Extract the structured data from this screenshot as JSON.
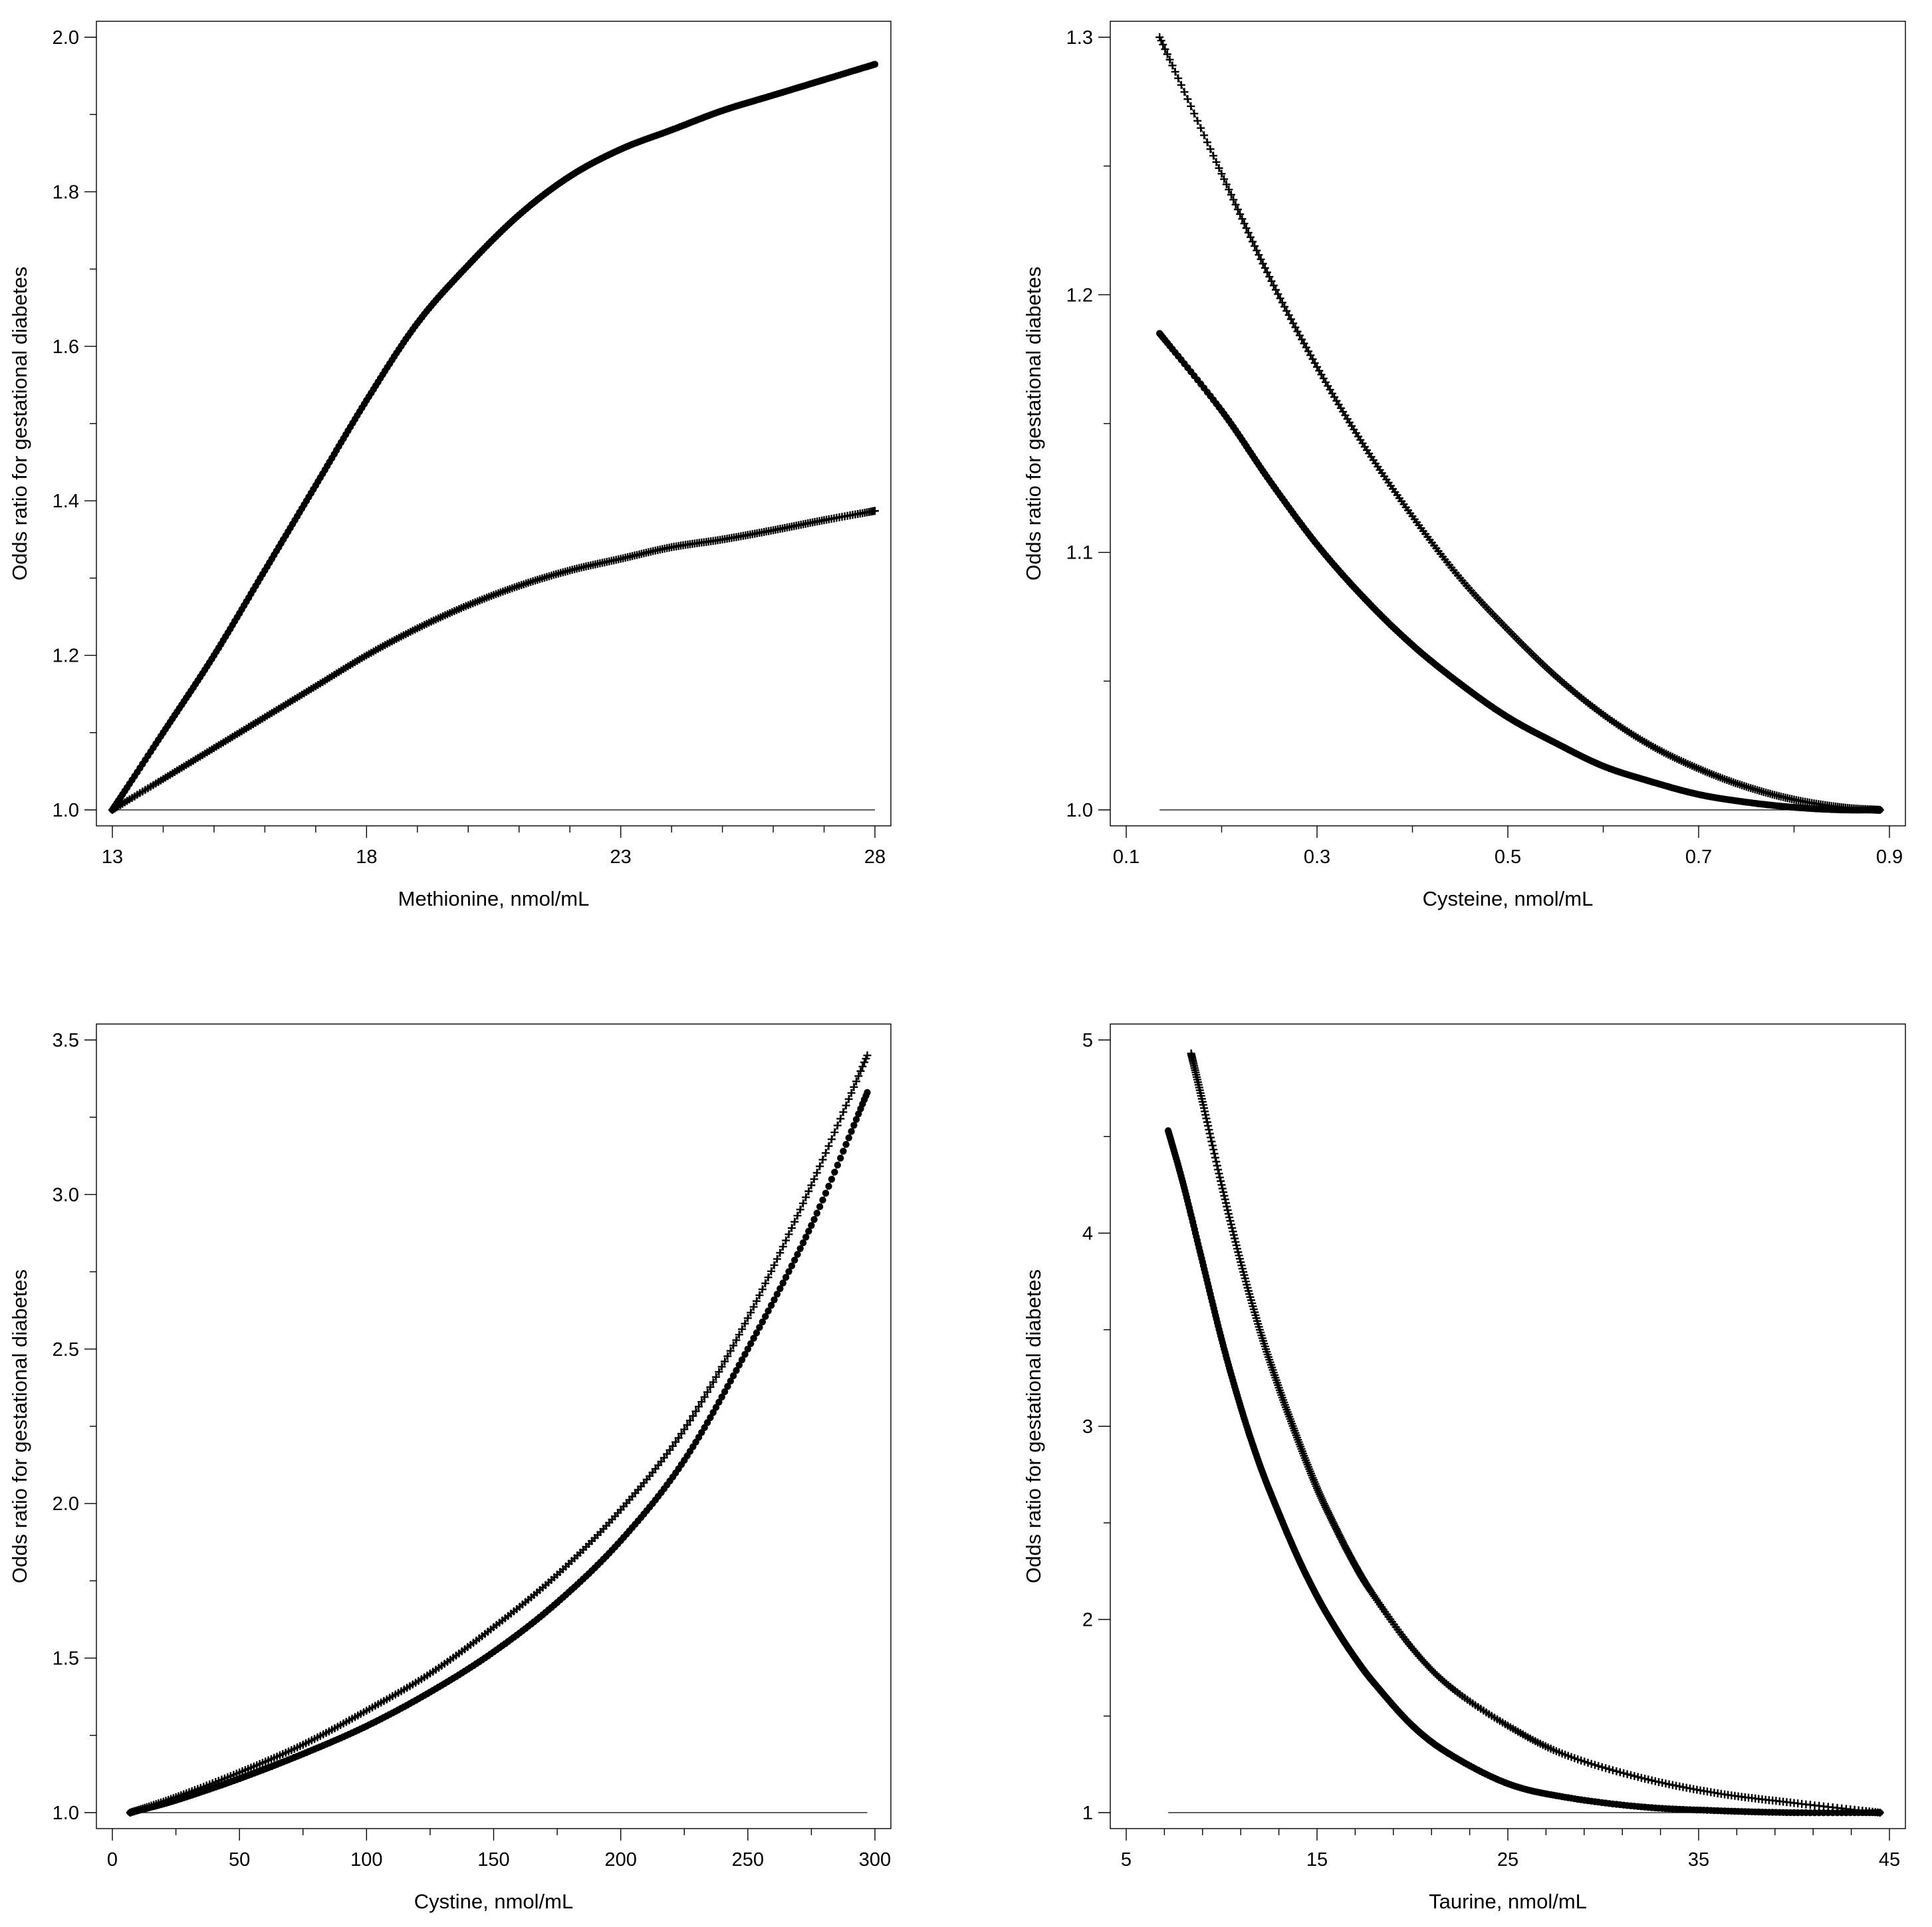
{
  "chart_data": [
    {
      "type": "line",
      "xlabel": "Methionine, nmol/mL",
      "ylabel": "Odds ratio for gestational diabetes",
      "xlim": [
        13,
        28
      ],
      "ylim": [
        1.0,
        2.0
      ],
      "x_ticks": [
        "13",
        "18",
        "23",
        "28"
      ],
      "y_ticks": [
        "1.0",
        "1.2",
        "1.4",
        "1.6",
        "1.8",
        "2.0"
      ],
      "x_minor_step": 1,
      "y_minor_step": 0.1,
      "reference_line": 1.0,
      "series": [
        {
          "name": "dots",
          "marker": "dot",
          "x": [
            13.0,
            14.0,
            15.0,
            16.0,
            17.0,
            18.0,
            19.0,
            20.0,
            21.0,
            22.0,
            23.0,
            24.0,
            25.0,
            26.0,
            27.0,
            28.0
          ],
          "values": [
            1.0,
            1.1,
            1.2,
            1.31,
            1.42,
            1.53,
            1.63,
            1.705,
            1.77,
            1.82,
            1.855,
            1.88,
            1.905,
            1.925,
            1.945,
            1.965
          ]
        },
        {
          "name": "plus",
          "marker": "plus",
          "x": [
            13.0,
            14.0,
            15.0,
            16.0,
            17.0,
            18.0,
            19.0,
            20.0,
            21.0,
            22.0,
            23.0,
            24.0,
            25.0,
            26.0,
            27.0,
            28.0
          ],
          "values": [
            1.0,
            1.04,
            1.08,
            1.12,
            1.16,
            1.2,
            1.235,
            1.265,
            1.29,
            1.31,
            1.325,
            1.34,
            1.35,
            1.362,
            1.375,
            1.387
          ]
        }
      ]
    },
    {
      "type": "line",
      "xlabel": "Cysteine, nmol/mL",
      "ylabel": "Odds ratio for gestational diabetes",
      "xlim": [
        0.1,
        0.9
      ],
      "ylim": [
        1.0,
        1.3
      ],
      "x_ticks": [
        "0.1",
        "0.3",
        "0.5",
        "0.7",
        "0.9"
      ],
      "y_ticks": [
        "1.0",
        "1.1",
        "1.2",
        "1.3"
      ],
      "x_minor_step": 0.1,
      "y_minor_step": 0.05,
      "reference_line": 1.0,
      "series": [
        {
          "name": "dots",
          "marker": "dot",
          "x": [
            0.135,
            0.2,
            0.25,
            0.3,
            0.35,
            0.4,
            0.45,
            0.5,
            0.55,
            0.6,
            0.65,
            0.7,
            0.75,
            0.8,
            0.85,
            0.89
          ],
          "values": [
            1.185,
            1.155,
            1.128,
            1.103,
            1.082,
            1.064,
            1.049,
            1.036,
            1.026,
            1.017,
            1.011,
            1.006,
            1.003,
            1.001,
            1.0,
            1.0
          ]
        },
        {
          "name": "plus",
          "marker": "plus",
          "x": [
            0.135,
            0.2,
            0.25,
            0.3,
            0.35,
            0.4,
            0.45,
            0.5,
            0.55,
            0.6,
            0.65,
            0.7,
            0.75,
            0.8,
            0.85,
            0.89
          ],
          "values": [
            1.3,
            1.247,
            1.207,
            1.172,
            1.141,
            1.114,
            1.09,
            1.07,
            1.052,
            1.037,
            1.025,
            1.016,
            1.009,
            1.004,
            1.001,
            1.0
          ]
        }
      ]
    },
    {
      "type": "line",
      "xlabel": "Cystine, nmol/mL",
      "ylabel": "Odds ratio for gestational diabetes",
      "xlim": [
        0,
        300
      ],
      "ylim": [
        1.0,
        3.5
      ],
      "x_ticks": [
        "0",
        "50",
        "100",
        "150",
        "200",
        "250",
        "300"
      ],
      "y_ticks": [
        "1.0",
        "1.5",
        "2.0",
        "2.5",
        "3.0",
        "3.5"
      ],
      "x_minor_step": 25,
      "y_minor_step": 0.25,
      "reference_line": 1.0,
      "series": [
        {
          "name": "dots",
          "marker": "dot",
          "x": [
            7,
            25,
            50,
            75,
            100,
            125,
            150,
            175,
            200,
            225,
            250,
            275,
            297
          ],
          "values": [
            1.0,
            1.04,
            1.11,
            1.19,
            1.28,
            1.39,
            1.52,
            1.68,
            1.88,
            2.14,
            2.5,
            2.9,
            3.33
          ]
        },
        {
          "name": "plus",
          "marker": "plus",
          "x": [
            7,
            25,
            50,
            75,
            100,
            125,
            150,
            175,
            200,
            225,
            250,
            275,
            297
          ],
          "values": [
            1.0,
            1.05,
            1.13,
            1.22,
            1.33,
            1.45,
            1.6,
            1.77,
            1.98,
            2.24,
            2.6,
            3.03,
            3.45
          ]
        }
      ]
    },
    {
      "type": "line",
      "xlabel": "Taurine, nmol/mL",
      "ylabel": "Odds ratio for gestational diabetes",
      "xlim": [
        5,
        45
      ],
      "ylim": [
        1,
        5
      ],
      "x_ticks": [
        "5",
        "15",
        "25",
        "35",
        "45"
      ],
      "y_ticks": [
        "1",
        "2",
        "3",
        "4",
        "5"
      ],
      "x_minor_step": 2,
      "y_minor_step": 0.5,
      "reference_line": 1.0,
      "series": [
        {
          "name": "dots",
          "marker": "dot",
          "x": [
            7.2,
            8.0,
            9.0,
            10.0,
            11.0,
            12.0,
            13.0,
            14.0,
            15.0,
            16.0,
            17.0,
            18.0,
            20.0,
            22.0,
            25.0,
            28.0,
            32.0,
            36.0,
            40.0,
            44.5
          ],
          "values": [
            4.53,
            4.25,
            3.85,
            3.45,
            3.1,
            2.8,
            2.55,
            2.32,
            2.12,
            1.95,
            1.8,
            1.67,
            1.45,
            1.3,
            1.15,
            1.08,
            1.03,
            1.01,
            1.0,
            1.0
          ]
        },
        {
          "name": "plus",
          "marker": "plus",
          "x": [
            8.4,
            9.0,
            10.0,
            11.0,
            12.0,
            13.0,
            14.0,
            15.0,
            16.0,
            17.0,
            18.0,
            20.0,
            22.0,
            25.0,
            28.0,
            32.0,
            36.0,
            40.0,
            44.5
          ],
          "values": [
            4.93,
            4.68,
            4.25,
            3.85,
            3.5,
            3.2,
            2.93,
            2.68,
            2.47,
            2.28,
            2.12,
            1.85,
            1.65,
            1.45,
            1.3,
            1.18,
            1.1,
            1.05,
            1.0
          ]
        }
      ]
    }
  ]
}
